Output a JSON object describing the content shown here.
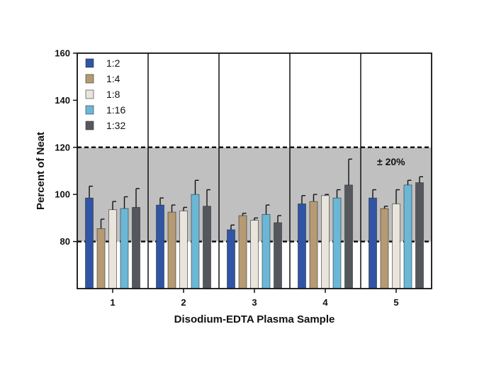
{
  "chart_data": {
    "type": "bar",
    "title": "",
    "xlabel": "Disodium-EDTA Plasma Sample",
    "ylabel": "Percent of Neat",
    "ylim": [
      60,
      160
    ],
    "yticks": [
      80,
      100,
      120,
      140,
      160
    ],
    "categories": [
      "1",
      "2",
      "3",
      "4",
      "5"
    ],
    "series": [
      {
        "name": "1:2",
        "color": "#2f55a4",
        "values": [
          98.5,
          95.5,
          85.0,
          96.0,
          98.5
        ],
        "errors": [
          5.0,
          3.0,
          2.0,
          3.5,
          3.5
        ]
      },
      {
        "name": "1:4",
        "color": "#b59a73",
        "values": [
          85.5,
          92.5,
          91.0,
          97.0,
          94.0
        ],
        "errors": [
          4.0,
          3.0,
          1.0,
          3.0,
          1.0
        ]
      },
      {
        "name": "1:8",
        "color": "#e9e4dc",
        "values": [
          93.5,
          93.0,
          89.0,
          99.5,
          96.0
        ],
        "errors": [
          3.5,
          1.5,
          1.0,
          0.5,
          6.0
        ]
      },
      {
        "name": "1:16",
        "color": "#6bb7d6",
        "values": [
          94.0,
          100.0,
          91.5,
          98.5,
          104.0
        ],
        "errors": [
          5.0,
          6.0,
          4.0,
          3.5,
          2.0
        ]
      },
      {
        "name": "1:32",
        "color": "#54585c",
        "values": [
          94.5,
          95.0,
          88.0,
          104.0,
          105.0
        ],
        "errors": [
          8.0,
          7.0,
          3.0,
          11.0,
          2.5
        ]
      }
    ],
    "reference_band": {
      "low": 80,
      "high": 120,
      "label": "± 20%",
      "color": "#c0c0c0"
    },
    "legend_position": "top-left",
    "grid": false
  }
}
